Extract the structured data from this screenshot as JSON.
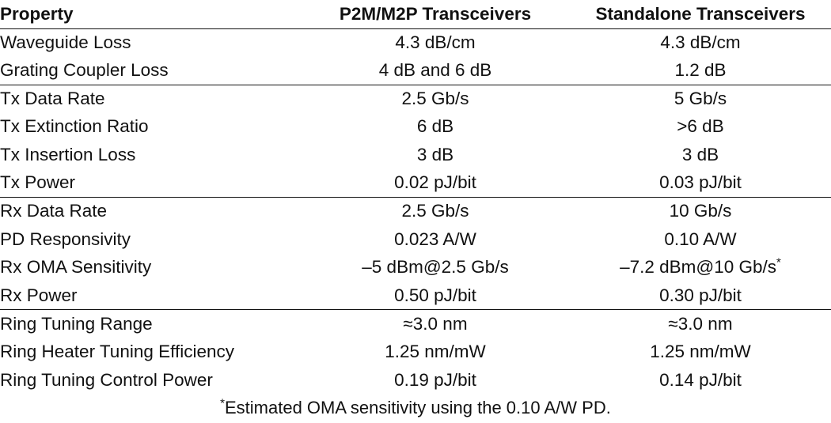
{
  "table": {
    "headers": [
      "Property",
      "P2M/M2P Transceivers",
      "Standalone Transceivers"
    ],
    "groups": [
      [
        [
          "Waveguide Loss",
          "4.3 dB/cm",
          "4.3 dB/cm"
        ],
        [
          "Grating Coupler Loss",
          "4 dB and 6 dB",
          "1.2 dB"
        ]
      ],
      [
        [
          "Tx Data Rate",
          "2.5 Gb/s",
          "5 Gb/s"
        ],
        [
          "Tx Extinction Ratio",
          "6 dB",
          ">6 dB"
        ],
        [
          "Tx Insertion Loss",
          "3 dB",
          "3 dB"
        ],
        [
          "Tx Power",
          "0.02 pJ/bit",
          "0.03 pJ/bit"
        ]
      ],
      [
        [
          "Rx Data Rate",
          "2.5 Gb/s",
          "10 Gb/s"
        ],
        [
          "PD Responsivity",
          "0.023 A/W",
          "0.10 A/W"
        ],
        [
          "Rx OMA Sensitivity",
          "–5 dBm@2.5 Gb/s",
          "–7.2 dBm@10 Gb/s*"
        ],
        [
          "Rx Power",
          "0.50 pJ/bit",
          "0.30 pJ/bit"
        ]
      ],
      [
        [
          "Ring Tuning Range",
          "≈3.0 nm",
          "≈3.0 nm"
        ],
        [
          "Ring Heater Tuning Efficiency",
          "1.25 nm/mW",
          "1.25 nm/mW"
        ],
        [
          "Ring Tuning Control Power",
          "0.19 pJ/bit",
          "0.14 pJ/bit"
        ]
      ]
    ]
  },
  "footnote": {
    "marker": "*",
    "text": "Estimated OMA sensitivity using the 0.10 A/W PD."
  }
}
